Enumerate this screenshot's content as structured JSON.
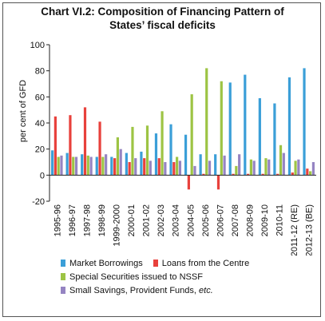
{
  "chart_data": {
    "type": "bar",
    "title": "Chart VI.2: Composition of Financing Pattern of States’ fiscal deficits",
    "title_lines": [
      "Chart VI.2: Composition of Financing Pattern of",
      "States’ fiscal deficits"
    ],
    "ylabel": "per cent  of  GFD",
    "xlabel": "",
    "ylim": [
      -20,
      100
    ],
    "yticks": [
      -20,
      0,
      20,
      40,
      60,
      80,
      100
    ],
    "categories": [
      "1995-96",
      "1996-97",
      "1997-98",
      "1998-99",
      "1999-2000",
      "2000-01",
      "2001-02",
      "2002-03",
      "2003-04",
      "2004-05",
      "2005-06",
      "2006-07",
      "2007-08",
      "2008-09",
      "2009-10",
      "2010-11",
      "2011-12 (RE)",
      "2012-13 (BE)"
    ],
    "series": [
      {
        "name": "Market Borrowings",
        "color": "#3b9fd8",
        "values": [
          19,
          17,
          16,
          14,
          14,
          17,
          18,
          32,
          39,
          31,
          16,
          16,
          71,
          77,
          59,
          55,
          75,
          82
        ]
      },
      {
        "name": "Loans from the Centre",
        "color": "#e8413c",
        "values": [
          45,
          46,
          52,
          41,
          13,
          10,
          13,
          13,
          10,
          -11,
          1,
          -11,
          1,
          1,
          1,
          1,
          2,
          5
        ]
      },
      {
        "name": "Special Securities issued to NSSF",
        "color": "#9dc444",
        "values": [
          14,
          14,
          15,
          14,
          29,
          37,
          38,
          49,
          14,
          62,
          82,
          72,
          7,
          12,
          13,
          23,
          11,
          3
        ]
      },
      {
        "name": "Small Savings, Provident Funds, etc.",
        "color": "#9584c2",
        "values": [
          15,
          14,
          14,
          16,
          20,
          13,
          11,
          10,
          11,
          7,
          11,
          15,
          16,
          11,
          12,
          17,
          12,
          10
        ]
      }
    ],
    "legend": [
      {
        "label": "Market Borrowings",
        "color": "#3b9fd8"
      },
      {
        "label": "Loans from the Centre",
        "color": "#e8413c"
      },
      {
        "label": "Special Securities issued to NSSF",
        "color": "#9dc444"
      },
      {
        "label_prefix": "Small Savings, Provident Funds, ",
        "label_italic": "etc.",
        "color": "#9584c2"
      }
    ],
    "legend_placement": "bottom",
    "grid": false
  }
}
